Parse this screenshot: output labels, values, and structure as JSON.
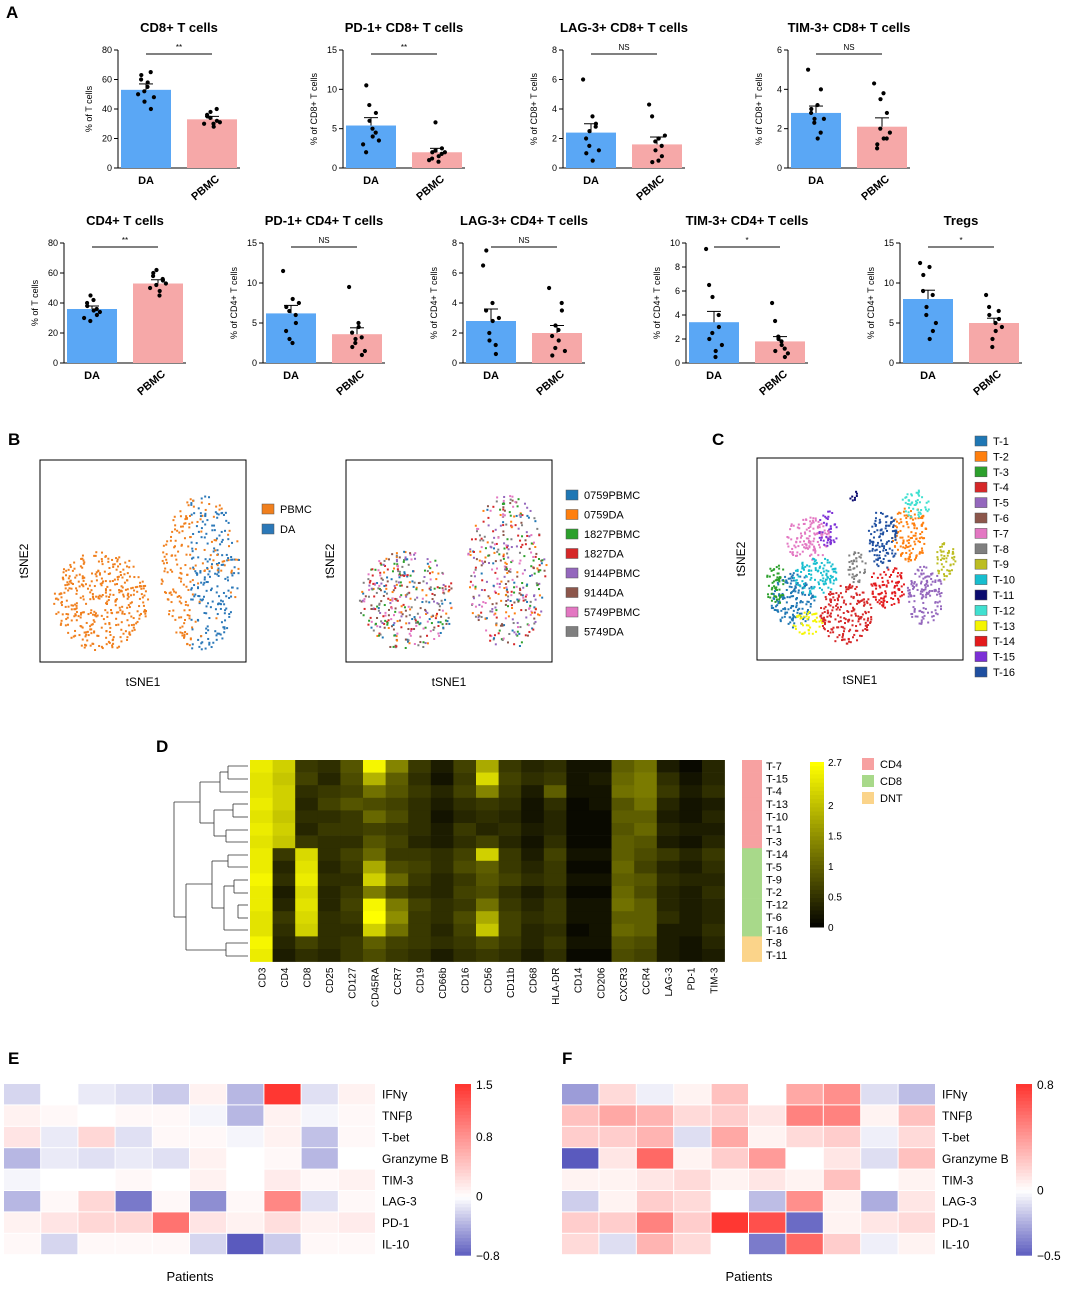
{
  "panels": {
    "A": "A",
    "B": "B",
    "C": "C",
    "D": "D",
    "E": "E",
    "F": "F"
  },
  "colors": {
    "da": "#5aa7f5",
    "pbmc": "#f6a8a8",
    "pbmc_dot": "#f07f1d",
    "da_dot": "#2b78b8"
  },
  "chart_data": [
    {
      "type": "bar",
      "id": "a1",
      "title": "CD8+ T cells",
      "ylabel": "% of T cells",
      "categories": [
        "DA",
        "PBMC"
      ],
      "values": [
        53,
        33
      ],
      "errors": [
        4,
        2
      ],
      "ylim": [
        0,
        80
      ],
      "yticks": [
        0,
        20,
        40,
        60,
        80
      ],
      "sig": "**",
      "points": [
        [
          50,
          63,
          45,
          58,
          40,
          60,
          52,
          55,
          65,
          48
        ],
        [
          30,
          35,
          38,
          28,
          32,
          36,
          34,
          30,
          40,
          31
        ]
      ]
    },
    {
      "type": "bar",
      "id": "a2",
      "title": "PD-1+ CD8+ T cells",
      "ylabel": "% of CD8+ T cells",
      "categories": [
        "DA",
        "PBMC"
      ],
      "values": [
        5.4,
        2.0
      ],
      "errors": [
        1.0,
        0.5
      ],
      "ylim": [
        0,
        15
      ],
      "yticks": [
        0,
        5,
        10,
        15
      ],
      "sig": "**",
      "points": [
        [
          3,
          10.5,
          6,
          4,
          7,
          2,
          8,
          5,
          4.5,
          3.5
        ],
        [
          1,
          2,
          5.8,
          1.5,
          2.5,
          1.2,
          2.2,
          0.8,
          1.8,
          2.0
        ]
      ]
    },
    {
      "type": "bar",
      "id": "a3",
      "title": "LAG-3+ CD8+ T cells",
      "ylabel": "% of CD8+ T cells",
      "categories": [
        "DA",
        "PBMC"
      ],
      "values": [
        2.4,
        1.6
      ],
      "errors": [
        0.6,
        0.5
      ],
      "ylim": [
        0,
        8
      ],
      "yticks": [
        0,
        2,
        4,
        6,
        8
      ],
      "sig": "NS",
      "points": [
        [
          6,
          1,
          2.5,
          0.5,
          3,
          2,
          1.5,
          3.5,
          2.8,
          1.2
        ],
        [
          4.3,
          0.4,
          1.2,
          2,
          0.8,
          3.5,
          1.8,
          0.5,
          1.5,
          2.2
        ]
      ]
    },
    {
      "type": "bar",
      "id": "a4",
      "title": "TIM-3+ CD8+ T cells",
      "ylabel": "% of CD8+ T cells",
      "categories": [
        "DA",
        "PBMC"
      ],
      "values": [
        2.8,
        2.1
      ],
      "errors": [
        0.35,
        0.45
      ],
      "ylim": [
        0,
        6
      ],
      "yticks": [
        0,
        2,
        4,
        6
      ],
      "sig": "NS",
      "points": [
        [
          5,
          3,
          2.5,
          1.5,
          4,
          2.8,
          2.3,
          3.2,
          1.8,
          2.5
        ],
        [
          4.3,
          1.2,
          3.5,
          1.5,
          2.8,
          1.0,
          2.0,
          3.8,
          1.5,
          1.8
        ]
      ]
    },
    {
      "type": "bar",
      "id": "a5",
      "title": "CD4+ T cells",
      "ylabel": "% of T cells",
      "categories": [
        "DA",
        "PBMC"
      ],
      "values": [
        36,
        53
      ],
      "errors": [
        2,
        2.5
      ],
      "ylim": [
        0,
        80
      ],
      "yticks": [
        0,
        20,
        40,
        60,
        80
      ],
      "sig": "**",
      "points": [
        [
          30,
          38,
          45,
          35,
          32,
          40,
          28,
          42,
          36,
          34
        ],
        [
          50,
          60,
          62,
          48,
          55,
          58,
          52,
          45,
          56,
          53
        ]
      ]
    },
    {
      "type": "bar",
      "id": "a6",
      "title": "PD-1+ CD4+ T cells",
      "ylabel": "% of CD4+ T cells",
      "categories": [
        "DA",
        "PBMC"
      ],
      "values": [
        6.2,
        3.6
      ],
      "errors": [
        1.0,
        0.8
      ],
      "ylim": [
        0,
        15
      ],
      "yticks": [
        0,
        5,
        10,
        15
      ],
      "sig": "NS",
      "points": [
        [
          11.5,
          7,
          3,
          8,
          5,
          4,
          6.5,
          2.5,
          6,
          7.5
        ],
        [
          9.5,
          2,
          3,
          4.5,
          1,
          3.8,
          2.5,
          5,
          3.2,
          1.5
        ]
      ]
    },
    {
      "type": "bar",
      "id": "a7",
      "title": "LAG-3+ CD4+ T cells",
      "ylabel": "% of CD4+ T cells",
      "categories": [
        "DA",
        "PBMC"
      ],
      "values": [
        2.8,
        2.0
      ],
      "errors": [
        0.8,
        0.5
      ],
      "ylim": [
        0,
        8
      ],
      "yticks": [
        0,
        2,
        4,
        6,
        8
      ],
      "sig": "NS",
      "points": [
        [
          6.5,
          7.5,
          1.5,
          2.8,
          0.6,
          3.5,
          2,
          4,
          1.2,
          3
        ],
        [
          5,
          0.5,
          2.5,
          1.5,
          3.5,
          1.8,
          1,
          2.2,
          4,
          0.8
        ]
      ]
    },
    {
      "type": "bar",
      "id": "a8",
      "title": "TIM-3+ CD4+ T cells",
      "ylabel": "% of CD4+ T cells",
      "categories": [
        "DA",
        "PBMC"
      ],
      "values": [
        3.4,
        1.8
      ],
      "errors": [
        0.9,
        0.4
      ],
      "ylim": [
        0,
        10
      ],
      "yticks": [
        0,
        2,
        4,
        6,
        8,
        10
      ],
      "sig": "*",
      "points": [
        [
          9.5,
          2,
          5.5,
          1,
          3,
          6.5,
          2.5,
          0.5,
          4,
          1.5
        ],
        [
          5,
          1,
          2,
          1.5,
          0.5,
          3.5,
          2.2,
          1.8,
          1.2,
          0.8
        ]
      ]
    },
    {
      "type": "bar",
      "id": "a9",
      "title": "Tregs",
      "ylabel": "% of CD4+ T cells",
      "categories": [
        "DA",
        "PBMC"
      ],
      "values": [
        8.0,
        5.0
      ],
      "errors": [
        1.1,
        0.6
      ],
      "ylim": [
        0,
        15
      ],
      "yticks": [
        0,
        5,
        10,
        15
      ],
      "sig": "*",
      "points": [
        [
          12.5,
          11,
          7,
          3,
          4,
          9,
          6,
          12,
          8.5,
          5
        ],
        [
          8.5,
          6,
          3,
          4,
          5.5,
          7,
          2,
          5,
          6.5,
          4.5
        ]
      ]
    }
  ],
  "tsne": {
    "xlabel": "tSNE1",
    "ylabel": "tSNE2",
    "legend1": [
      "PBMC",
      "DA"
    ],
    "legend2": [
      "0759PBMC",
      "0759DA",
      "1827PBMC",
      "1827DA",
      "9144PBMC",
      "9144DA",
      "5749PBMC",
      "5749DA"
    ],
    "legend2_colors": [
      "#1f77b4",
      "#ff7f0e",
      "#2ca02c",
      "#d62728",
      "#9467bd",
      "#8c564b",
      "#e377c2",
      "#7f7f7f"
    ],
    "legend3": [
      "T-1",
      "T-2",
      "T-3",
      "T-4",
      "T-5",
      "T-6",
      "T-7",
      "T-8",
      "T-9",
      "T-10",
      "T-11",
      "T-12",
      "T-13",
      "T-14",
      "T-15",
      "T-16"
    ],
    "legend3_colors": [
      "#1f77b4",
      "#ff7f0e",
      "#2ca02c",
      "#d62728",
      "#9467bd",
      "#8c564b",
      "#e377c2",
      "#7f7f7f",
      "#bcbd22",
      "#17becf",
      "#0b0b6f",
      "#40e0d0",
      "#f5f500",
      "#e31a1c",
      "#7b2fd6",
      "#1f4fa0"
    ]
  },
  "heatmapD": {
    "columns": [
      "CD3",
      "CD4",
      "CD8",
      "CD25",
      "CD127",
      "CD45RA",
      "CCR7",
      "CD19",
      "CD66b",
      "CD16",
      "CD56",
      "CD11b",
      "CD68",
      "HLA-DR",
      "CD14",
      "CD206",
      "CXCR3",
      "CCR4",
      "LAG-3",
      "PD-1",
      "TIM-3"
    ],
    "rows": [
      "T-7",
      "T-15",
      "T-4",
      "T-13",
      "T-10",
      "T-1",
      "T-3",
      "T-14",
      "T-5",
      "T-9",
      "T-2",
      "T-12",
      "T-6",
      "T-16",
      "T-8",
      "T-11"
    ],
    "groups": [
      "CD4",
      "CD4",
      "CD4",
      "CD4",
      "CD4",
      "CD4",
      "CD4",
      "CD8",
      "CD8",
      "CD8",
      "CD8",
      "CD8",
      "CD8",
      "CD8",
      "DNT",
      "DNT"
    ],
    "legend": [
      "CD4",
      "CD8",
      "DNT"
    ],
    "legend_colors": [
      "#f7a1a1",
      "#a8d98a",
      "#fbd48a"
    ],
    "scale_ticks": [
      "2.7",
      "2",
      "1.5",
      "1",
      "0.5",
      "0"
    ],
    "values": [
      [
        2.5,
        2.2,
        0.6,
        0.5,
        0.9,
        2.6,
        1.4,
        0.6,
        0.3,
        0.7,
        1.8,
        0.6,
        0.4,
        0.5,
        0.2,
        0.2,
        1.0,
        1.2,
        0.3,
        0.1,
        0.4
      ],
      [
        2.4,
        2.1,
        0.7,
        0.4,
        0.8,
        1.9,
        1.0,
        0.5,
        0.2,
        0.6,
        2.3,
        0.7,
        0.5,
        0.6,
        0.2,
        0.3,
        1.1,
        1.3,
        0.5,
        0.2,
        0.4
      ],
      [
        2.4,
        2.2,
        0.5,
        0.6,
        0.7,
        1.2,
        0.9,
        0.6,
        0.4,
        0.7,
        1.4,
        0.6,
        0.3,
        1.0,
        0.2,
        0.2,
        1.2,
        1.3,
        0.6,
        0.3,
        0.5
      ],
      [
        2.5,
        2.2,
        0.4,
        0.7,
        0.9,
        0.8,
        0.7,
        0.5,
        0.3,
        0.5,
        0.6,
        0.5,
        0.2,
        0.5,
        0.1,
        0.2,
        0.9,
        1.2,
        0.4,
        0.2,
        0.3
      ],
      [
        2.4,
        2.1,
        0.5,
        0.5,
        0.6,
        1.1,
        0.8,
        0.5,
        0.2,
        0.4,
        0.5,
        0.4,
        0.2,
        0.4,
        0.1,
        0.1,
        1.0,
        1.0,
        0.3,
        0.2,
        0.4
      ],
      [
        2.5,
        2.2,
        0.4,
        0.6,
        0.6,
        0.7,
        0.6,
        0.5,
        0.3,
        0.6,
        0.4,
        0.5,
        0.3,
        0.4,
        0.1,
        0.1,
        0.9,
        1.1,
        0.4,
        0.3,
        0.3
      ],
      [
        2.4,
        2.1,
        0.6,
        0.5,
        0.5,
        0.9,
        0.7,
        0.4,
        0.3,
        0.5,
        0.7,
        0.4,
        0.2,
        0.5,
        0.1,
        0.1,
        1.0,
        0.9,
        0.3,
        0.2,
        0.4
      ],
      [
        2.5,
        0.6,
        2.3,
        0.5,
        0.7,
        1.1,
        0.6,
        0.6,
        0.5,
        0.7,
        2.2,
        0.6,
        0.3,
        0.7,
        0.2,
        0.2,
        1.0,
        0.8,
        0.6,
        0.4,
        0.6
      ],
      [
        2.5,
        0.4,
        2.4,
        0.4,
        0.6,
        1.8,
        0.8,
        0.7,
        0.5,
        0.8,
        1.0,
        0.6,
        0.4,
        0.6,
        0.1,
        0.1,
        1.1,
        0.7,
        0.4,
        0.3,
        0.5
      ],
      [
        2.6,
        0.5,
        2.5,
        0.5,
        0.5,
        2.2,
        1.1,
        0.6,
        0.4,
        0.6,
        0.9,
        0.7,
        0.5,
        0.6,
        0.2,
        0.2,
        1.0,
        0.9,
        0.5,
        0.4,
        0.4
      ],
      [
        2.5,
        0.3,
        2.3,
        0.4,
        0.6,
        1.3,
        0.7,
        0.5,
        0.4,
        0.7,
        0.8,
        0.5,
        0.3,
        0.5,
        0.1,
        0.1,
        1.1,
        0.8,
        0.4,
        0.3,
        0.5
      ],
      [
        2.5,
        0.4,
        2.4,
        0.4,
        0.7,
        2.6,
        1.3,
        0.7,
        0.5,
        0.6,
        1.2,
        0.6,
        0.4,
        0.6,
        0.2,
        0.2,
        1.2,
        1.0,
        0.4,
        0.3,
        0.4
      ],
      [
        2.4,
        0.6,
        2.3,
        0.5,
        0.6,
        2.7,
        1.5,
        0.6,
        0.5,
        0.8,
        1.8,
        0.7,
        0.5,
        0.6,
        0.2,
        0.2,
        1.0,
        1.0,
        0.5,
        0.3,
        0.4
      ],
      [
        2.4,
        0.5,
        2.2,
        0.5,
        0.5,
        2.2,
        1.2,
        0.6,
        0.4,
        0.7,
        2.1,
        0.7,
        0.4,
        0.5,
        0.1,
        0.2,
        1.1,
        1.0,
        0.3,
        0.3,
        0.5
      ],
      [
        2.6,
        0.4,
        0.7,
        0.5,
        0.6,
        1.0,
        0.7,
        0.6,
        0.5,
        0.6,
        0.8,
        0.6,
        0.4,
        0.6,
        0.2,
        0.2,
        0.9,
        0.8,
        0.3,
        0.2,
        0.4
      ],
      [
        2.5,
        0.3,
        0.5,
        0.4,
        0.6,
        0.8,
        0.6,
        0.5,
        0.3,
        0.5,
        0.6,
        0.5,
        0.3,
        0.5,
        0.1,
        0.1,
        0.8,
        0.7,
        0.3,
        0.2,
        0.3
      ]
    ]
  },
  "heatmapE": {
    "rows": [
      "IFNγ",
      "TNFβ",
      "T-bet",
      "Granzyme B",
      "TIM-3",
      "LAG-3",
      "PD-1",
      "IL-10"
    ],
    "xlabel": "Patients",
    "scale_ticks": [
      "1.5",
      "0.8",
      "0",
      "−0.8"
    ],
    "min": -0.8,
    "max": 1.5,
    "values": [
      [
        -0.2,
        0.0,
        -0.1,
        -0.15,
        -0.25,
        0.1,
        -0.35,
        1.5,
        -0.15,
        0.1
      ],
      [
        0.1,
        0.05,
        0.0,
        0.05,
        0.05,
        -0.05,
        -0.35,
        0.1,
        -0.05,
        0.05
      ],
      [
        0.2,
        -0.1,
        0.3,
        -0.15,
        0.05,
        0.05,
        -0.05,
        0.1,
        -0.3,
        0.05
      ],
      [
        -0.35,
        -0.1,
        -0.15,
        -0.1,
        -0.15,
        0.1,
        0.0,
        0.05,
        -0.35,
        0.0
      ],
      [
        -0.05,
        0.0,
        0.0,
        0.05,
        0.0,
        0.1,
        0.0,
        0.15,
        0.05,
        0.1
      ],
      [
        -0.35,
        0.05,
        0.3,
        -0.65,
        0.05,
        -0.55,
        0.05,
        0.9,
        -0.15,
        0.05
      ],
      [
        0.1,
        0.2,
        0.3,
        0.3,
        1.05,
        0.2,
        0.1,
        0.25,
        0.1,
        0.15
      ],
      [
        0.05,
        -0.2,
        0.05,
        0.05,
        0.05,
        -0.2,
        -0.8,
        -0.25,
        0.05,
        0.05
      ]
    ]
  },
  "heatmapF": {
    "rows": [
      "IFNγ",
      "TNFβ",
      "T-bet",
      "Granzyme B",
      "TIM-3",
      "LAG-3",
      "PD-1",
      "IL-10"
    ],
    "xlabel": "Patients",
    "scale_ticks": [
      "0.8",
      "0",
      "−0.5"
    ],
    "min": -0.5,
    "max": 0.8,
    "values": [
      [
        -0.3,
        0.15,
        -0.05,
        0.05,
        0.25,
        0.0,
        0.35,
        0.45,
        -0.1,
        -0.2
      ],
      [
        0.25,
        0.35,
        0.3,
        0.15,
        0.2,
        0.1,
        0.5,
        0.5,
        0.05,
        0.25
      ],
      [
        0.2,
        0.2,
        0.3,
        -0.1,
        0.35,
        0.05,
        0.15,
        0.2,
        -0.05,
        0.15
      ],
      [
        -0.5,
        0.1,
        0.6,
        0.05,
        0.2,
        0.4,
        0.0,
        0.1,
        -0.1,
        0.25
      ],
      [
        0.05,
        0.05,
        0.1,
        0.15,
        0.05,
        0.1,
        0.05,
        0.25,
        0.0,
        0.05
      ],
      [
        -0.15,
        0.05,
        0.2,
        0.15,
        0.0,
        -0.2,
        0.45,
        0.05,
        -0.25,
        0.1
      ],
      [
        0.2,
        0.2,
        0.5,
        0.2,
        0.8,
        0.7,
        -0.45,
        0.05,
        0.1,
        0.15
      ],
      [
        0.15,
        -0.1,
        0.3,
        0.15,
        0.0,
        -0.4,
        0.6,
        0.2,
        -0.05,
        0.05
      ]
    ]
  }
}
